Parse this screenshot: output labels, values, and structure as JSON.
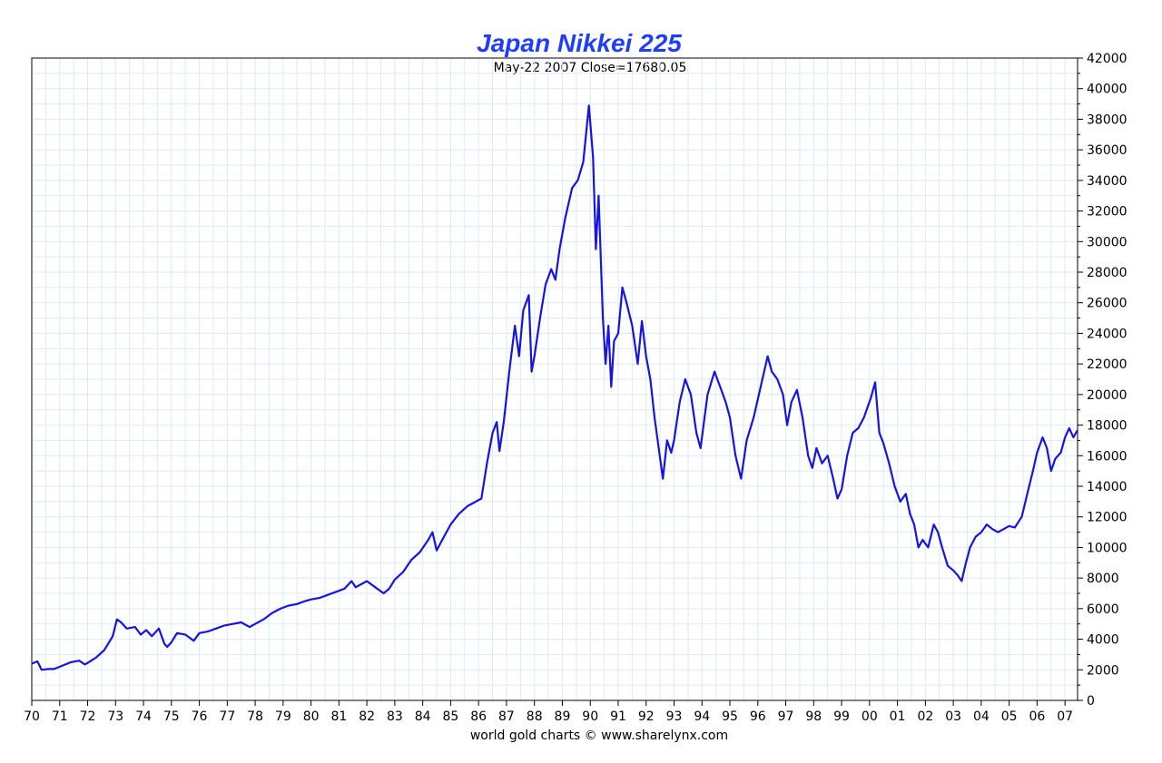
{
  "chart_data": {
    "type": "line",
    "title": "Japan Nikkei 225",
    "subtitle": "May-22  2007    Close=17680.05",
    "footer": "world gold charts © www.sharelynx.com",
    "xlabel": "",
    "ylabel": "",
    "x_range": [
      1970,
      2007.45
    ],
    "ylim": [
      0,
      42000
    ],
    "y_ticks": [
      0,
      2000,
      4000,
      6000,
      8000,
      10000,
      12000,
      14000,
      16000,
      18000,
      20000,
      22000,
      24000,
      26000,
      28000,
      30000,
      32000,
      34000,
      36000,
      38000,
      40000,
      42000
    ],
    "x_ticks": [
      {
        "value": 1970,
        "label": "70"
      },
      {
        "value": 1971,
        "label": "71"
      },
      {
        "value": 1972,
        "label": "72"
      },
      {
        "value": 1973,
        "label": "73"
      },
      {
        "value": 1974,
        "label": "74"
      },
      {
        "value": 1975,
        "label": "75"
      },
      {
        "value": 1976,
        "label": "76"
      },
      {
        "value": 1977,
        "label": "77"
      },
      {
        "value": 1978,
        "label": "78"
      },
      {
        "value": 1979,
        "label": "79"
      },
      {
        "value": 1980,
        "label": "80"
      },
      {
        "value": 1981,
        "label": "81"
      },
      {
        "value": 1982,
        "label": "82"
      },
      {
        "value": 1983,
        "label": "83"
      },
      {
        "value": 1984,
        "label": "84"
      },
      {
        "value": 1985,
        "label": "85"
      },
      {
        "value": 1986,
        "label": "86"
      },
      {
        "value": 1987,
        "label": "87"
      },
      {
        "value": 1988,
        "label": "88"
      },
      {
        "value": 1989,
        "label": "89"
      },
      {
        "value": 1990,
        "label": "90"
      },
      {
        "value": 1991,
        "label": "91"
      },
      {
        "value": 1992,
        "label": "92"
      },
      {
        "value": 1993,
        "label": "93"
      },
      {
        "value": 1994,
        "label": "94"
      },
      {
        "value": 1995,
        "label": "95"
      },
      {
        "value": 1996,
        "label": "96"
      },
      {
        "value": 1997,
        "label": "97"
      },
      {
        "value": 1998,
        "label": "98"
      },
      {
        "value": 1999,
        "label": "99"
      },
      {
        "value": 2000,
        "label": "00"
      },
      {
        "value": 2001,
        "label": "01"
      },
      {
        "value": 2002,
        "label": "02"
      },
      {
        "value": 2003,
        "label": "03"
      },
      {
        "value": 2004,
        "label": "04"
      },
      {
        "value": 2005,
        "label": "05"
      },
      {
        "value": 2006,
        "label": "06"
      },
      {
        "value": 2007,
        "label": "07"
      }
    ],
    "grid": true,
    "series": [
      {
        "name": "Nikkei 225",
        "color": "#1414e6",
        "points": [
          [
            1970.0,
            2400
          ],
          [
            1970.2,
            2550
          ],
          [
            1970.35,
            2000
          ],
          [
            1970.6,
            2050
          ],
          [
            1970.8,
            2050
          ],
          [
            1971.0,
            2200
          ],
          [
            1971.4,
            2500
          ],
          [
            1971.7,
            2600
          ],
          [
            1971.9,
            2350
          ],
          [
            1972.0,
            2450
          ],
          [
            1972.3,
            2800
          ],
          [
            1972.6,
            3300
          ],
          [
            1972.9,
            4200
          ],
          [
            1973.05,
            5300
          ],
          [
            1973.2,
            5100
          ],
          [
            1973.4,
            4700
          ],
          [
            1973.7,
            4800
          ],
          [
            1973.9,
            4300
          ],
          [
            1974.1,
            4600
          ],
          [
            1974.3,
            4200
          ],
          [
            1974.55,
            4700
          ],
          [
            1974.75,
            3700
          ],
          [
            1974.85,
            3500
          ],
          [
            1975.0,
            3800
          ],
          [
            1975.2,
            4400
          ],
          [
            1975.5,
            4300
          ],
          [
            1975.8,
            3900
          ],
          [
            1976.0,
            4400
          ],
          [
            1976.3,
            4500
          ],
          [
            1976.6,
            4700
          ],
          [
            1976.9,
            4900
          ],
          [
            1977.2,
            5000
          ],
          [
            1977.5,
            5100
          ],
          [
            1977.8,
            4800
          ],
          [
            1978.0,
            5000
          ],
          [
            1978.3,
            5300
          ],
          [
            1978.6,
            5700
          ],
          [
            1978.9,
            6000
          ],
          [
            1979.2,
            6200
          ],
          [
            1979.5,
            6300
          ],
          [
            1979.8,
            6500
          ],
          [
            1980.0,
            6600
          ],
          [
            1980.3,
            6700
          ],
          [
            1980.6,
            6900
          ],
          [
            1980.9,
            7100
          ],
          [
            1981.2,
            7300
          ],
          [
            1981.45,
            7800
          ],
          [
            1981.6,
            7400
          ],
          [
            1981.8,
            7600
          ],
          [
            1982.0,
            7800
          ],
          [
            1982.3,
            7400
          ],
          [
            1982.6,
            7000
          ],
          [
            1982.8,
            7300
          ],
          [
            1983.0,
            7900
          ],
          [
            1983.3,
            8400
          ],
          [
            1983.6,
            9200
          ],
          [
            1983.9,
            9700
          ],
          [
            1984.2,
            10500
          ],
          [
            1984.35,
            11000
          ],
          [
            1984.5,
            9800
          ],
          [
            1984.7,
            10500
          ],
          [
            1985.0,
            11500
          ],
          [
            1985.3,
            12200
          ],
          [
            1985.6,
            12700
          ],
          [
            1985.9,
            13000
          ],
          [
            1986.1,
            13200
          ],
          [
            1986.3,
            15500
          ],
          [
            1986.5,
            17500
          ],
          [
            1986.65,
            18200
          ],
          [
            1986.75,
            16300
          ],
          [
            1986.9,
            18200
          ],
          [
            1987.1,
            21500
          ],
          [
            1987.3,
            24500
          ],
          [
            1987.45,
            22500
          ],
          [
            1987.6,
            25500
          ],
          [
            1987.8,
            26500
          ],
          [
            1987.9,
            21500
          ],
          [
            1988.0,
            22500
          ],
          [
            1988.2,
            25000
          ],
          [
            1988.4,
            27200
          ],
          [
            1988.6,
            28200
          ],
          [
            1988.75,
            27500
          ],
          [
            1988.9,
            29500
          ],
          [
            1989.1,
            31500
          ],
          [
            1989.35,
            33500
          ],
          [
            1989.55,
            34000
          ],
          [
            1989.75,
            35200
          ],
          [
            1989.95,
            38900
          ],
          [
            1990.1,
            35500
          ],
          [
            1990.2,
            29500
          ],
          [
            1990.3,
            33000
          ],
          [
            1990.45,
            25000
          ],
          [
            1990.55,
            22000
          ],
          [
            1990.65,
            24500
          ],
          [
            1990.75,
            20500
          ],
          [
            1990.85,
            23500
          ],
          [
            1991.0,
            24000
          ],
          [
            1991.15,
            27000
          ],
          [
            1991.3,
            26000
          ],
          [
            1991.5,
            24500
          ],
          [
            1991.7,
            22000
          ],
          [
            1991.85,
            24800
          ],
          [
            1992.0,
            22500
          ],
          [
            1992.15,
            21000
          ],
          [
            1992.3,
            18500
          ],
          [
            1992.45,
            16500
          ],
          [
            1992.6,
            14500
          ],
          [
            1992.75,
            17000
          ],
          [
            1992.9,
            16200
          ],
          [
            1993.0,
            17000
          ],
          [
            1993.2,
            19500
          ],
          [
            1993.4,
            21000
          ],
          [
            1993.6,
            20000
          ],
          [
            1993.8,
            17500
          ],
          [
            1993.95,
            16500
          ],
          [
            1994.2,
            20000
          ],
          [
            1994.45,
            21500
          ],
          [
            1994.65,
            20500
          ],
          [
            1994.85,
            19500
          ],
          [
            1995.0,
            18500
          ],
          [
            1995.2,
            16000
          ],
          [
            1995.4,
            14500
          ],
          [
            1995.6,
            17000
          ],
          [
            1995.85,
            18500
          ],
          [
            1996.1,
            20500
          ],
          [
            1996.35,
            22500
          ],
          [
            1996.5,
            21500
          ],
          [
            1996.7,
            21000
          ],
          [
            1996.9,
            20000
          ],
          [
            1997.05,
            18000
          ],
          [
            1997.2,
            19500
          ],
          [
            1997.4,
            20300
          ],
          [
            1997.6,
            18500
          ],
          [
            1997.8,
            16000
          ],
          [
            1997.95,
            15200
          ],
          [
            1998.1,
            16500
          ],
          [
            1998.3,
            15500
          ],
          [
            1998.5,
            16000
          ],
          [
            1998.7,
            14500
          ],
          [
            1998.85,
            13200
          ],
          [
            1999.0,
            13800
          ],
          [
            1999.2,
            16000
          ],
          [
            1999.4,
            17500
          ],
          [
            1999.6,
            17800
          ],
          [
            1999.8,
            18500
          ],
          [
            2000.05,
            19800
          ],
          [
            2000.2,
            20800
          ],
          [
            2000.35,
            17500
          ],
          [
            2000.5,
            16800
          ],
          [
            2000.7,
            15500
          ],
          [
            2000.9,
            14000
          ],
          [
            2001.1,
            13000
          ],
          [
            2001.3,
            13500
          ],
          [
            2001.45,
            12200
          ],
          [
            2001.6,
            11500
          ],
          [
            2001.75,
            10000
          ],
          [
            2001.9,
            10500
          ],
          [
            2002.1,
            10000
          ],
          [
            2002.3,
            11500
          ],
          [
            2002.45,
            11000
          ],
          [
            2002.6,
            10000
          ],
          [
            2002.8,
            8800
          ],
          [
            2003.0,
            8500
          ],
          [
            2003.15,
            8200
          ],
          [
            2003.3,
            7800
          ],
          [
            2003.45,
            9000
          ],
          [
            2003.6,
            10000
          ],
          [
            2003.8,
            10700
          ],
          [
            2004.0,
            11000
          ],
          [
            2004.2,
            11500
          ],
          [
            2004.4,
            11200
          ],
          [
            2004.6,
            11000
          ],
          [
            2004.8,
            11200
          ],
          [
            2005.0,
            11400
          ],
          [
            2005.2,
            11300
          ],
          [
            2005.45,
            12000
          ],
          [
            2005.65,
            13500
          ],
          [
            2005.85,
            15000
          ],
          [
            2006.0,
            16200
          ],
          [
            2006.2,
            17200
          ],
          [
            2006.35,
            16500
          ],
          [
            2006.5,
            15000
          ],
          [
            2006.65,
            15800
          ],
          [
            2006.85,
            16200
          ],
          [
            2007.0,
            17200
          ],
          [
            2007.15,
            17800
          ],
          [
            2007.3,
            17200
          ],
          [
            2007.45,
            17680
          ]
        ]
      }
    ]
  }
}
